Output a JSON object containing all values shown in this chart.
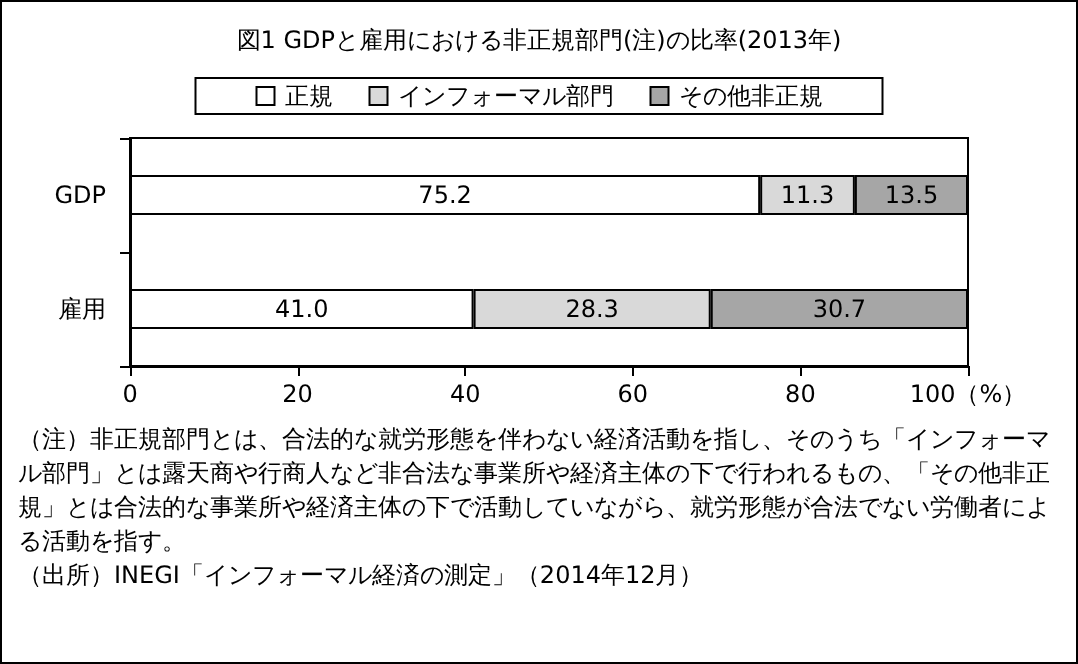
{
  "chart_data": {
    "type": "bar",
    "orientation": "horizontal",
    "stacked": true,
    "title": "図1 GDPと雇用における非正規部門(注)の比率(2013年)",
    "categories": [
      "GDP",
      "雇用"
    ],
    "series": [
      {
        "name": "正規",
        "color": "#ffffff",
        "values": [
          75.2,
          41.0
        ],
        "value_labels": [
          "75.2",
          "41.0"
        ]
      },
      {
        "name": "インフォーマル部門",
        "color": "#d9d9d9",
        "values": [
          11.3,
          28.3
        ],
        "value_labels": [
          "11.3",
          "28.3"
        ]
      },
      {
        "name": "その他非正規",
        "color": "#a6a6a6",
        "values": [
          13.5,
          30.7
        ],
        "value_labels": [
          "13.5",
          "30.7"
        ]
      }
    ],
    "xlim": [
      0,
      100
    ],
    "xticks": [
      0,
      20,
      40,
      60,
      80,
      {
        "value": 100,
        "label": "100（%）"
      }
    ],
    "grid": false,
    "legend": "top",
    "annotations": [
      "（注）非正規部門とは、合法的な就労形態を伴わない経済活動を指し、そのうち「インフォーマル部門」とは露天商や行商人など非合法な事業所や経済主体の下で行われるもの、「その他非正規」とは合法的な事業所や経済主体の下で活動していながら、就労形態が合法でない労働者による活動を指す。",
      "（出所）INEGI「インフォーマル経済の測定」（2014年12月）"
    ]
  }
}
